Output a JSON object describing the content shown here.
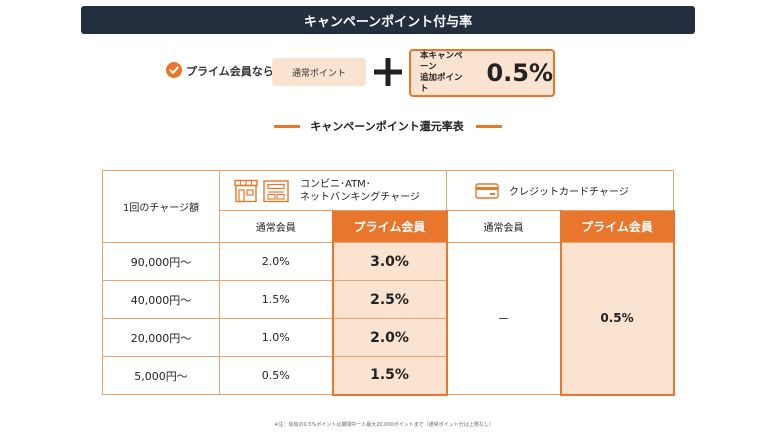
{
  "header": {
    "title": "キャンペーンポイント付与率"
  },
  "condition": {
    "prime_label": "プライム会員なら",
    "normal_points_label": "通常ポイント",
    "campaign_label_line1": "本キャンペーン",
    "campaign_label_line2": "追加ポイント",
    "campaign_value": "0.5%"
  },
  "table_title": "キャンペーンポイント還元率表",
  "table": {
    "row_header": "1回のチャージ額",
    "convenience_line1": "コンビニ･ATM･",
    "convenience_line2": "ネットバンキングチャージ",
    "credit_label": "クレジットカードチャージ",
    "normal_member": "通常会員",
    "prime_member": "プライム会員",
    "rows": [
      {
        "amount": "90,000円～",
        "conv_normal": "2.0%",
        "conv_prime": "3.0%"
      },
      {
        "amount": "40,000円～",
        "conv_normal": "1.5%",
        "conv_prime": "2.5%"
      },
      {
        "amount": "20,000円～",
        "conv_normal": "1.0%",
        "conv_prime": "2.0%"
      },
      {
        "amount": "5,000円～",
        "conv_normal": "0.5%",
        "conv_prime": "1.5%"
      }
    ],
    "credit_normal": "－",
    "credit_prime": "0.5%"
  },
  "footnote": "※注：追加の0.5%ポイントは期間中一人最大20,000ポイントまで（通常ポイント分は上限なし）",
  "colors": {
    "accent": "#e8762c",
    "header_bg": "#232f3e",
    "light_fill": "#fbe3d2"
  }
}
